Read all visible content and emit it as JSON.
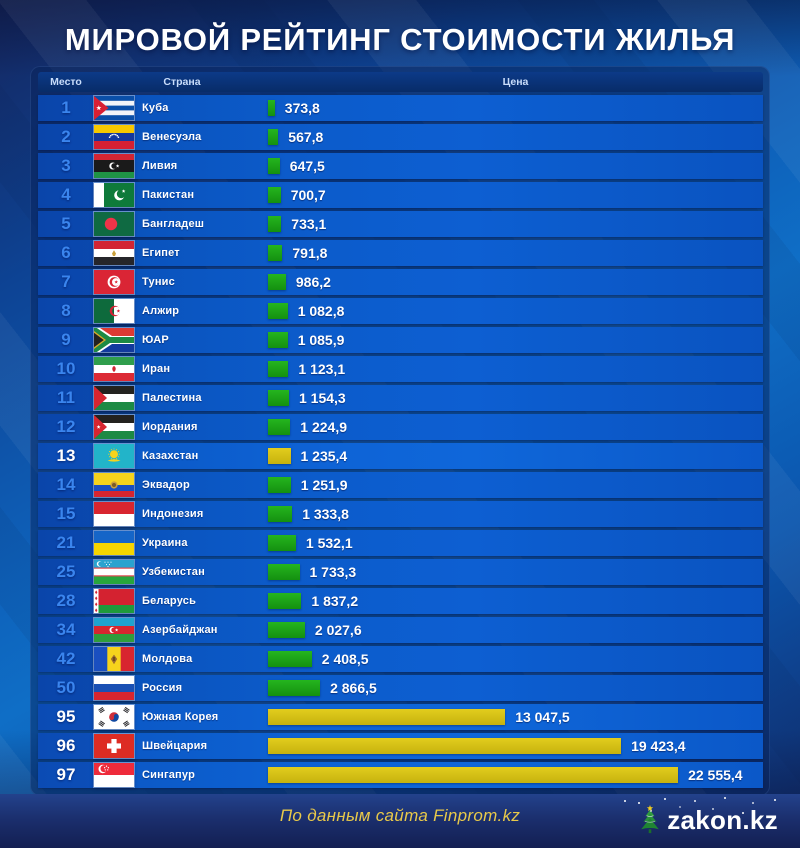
{
  "title": "МИРОВОЙ РЕЙТИНГ СТОИМОСТИ ЖИЛЬЯ",
  "table": {
    "col_rank": "Место",
    "col_country": "Страна",
    "col_price": "Цена"
  },
  "rows": [
    {
      "rank": "1",
      "country": "Куба",
      "flag": "cuba",
      "value": 373.8,
      "value_label": "373,8",
      "highlight": false
    },
    {
      "rank": "2",
      "country": "Венесуэла",
      "flag": "venezuela",
      "value": 567.8,
      "value_label": "567,8",
      "highlight": false
    },
    {
      "rank": "3",
      "country": "Ливия",
      "flag": "libya",
      "value": 647.5,
      "value_label": "647,5",
      "highlight": false
    },
    {
      "rank": "4",
      "country": "Пакистан",
      "flag": "pakistan",
      "value": 700.7,
      "value_label": "700,7",
      "highlight": false
    },
    {
      "rank": "5",
      "country": "Бангладеш",
      "flag": "bangladesh",
      "value": 733.1,
      "value_label": "733,1",
      "highlight": false
    },
    {
      "rank": "6",
      "country": "Египет",
      "flag": "egypt",
      "value": 791.8,
      "value_label": "791,8",
      "highlight": false
    },
    {
      "rank": "7",
      "country": "Тунис",
      "flag": "tunisia",
      "value": 986.2,
      "value_label": "986,2",
      "highlight": false
    },
    {
      "rank": "8",
      "country": "Алжир",
      "flag": "algeria",
      "value": 1082.8,
      "value_label": "1 082,8",
      "highlight": false
    },
    {
      "rank": "9",
      "country": "ЮАР",
      "flag": "south-africa",
      "value": 1085.9,
      "value_label": "1 085,9",
      "highlight": false
    },
    {
      "rank": "10",
      "country": "Иран",
      "flag": "iran",
      "value": 1123.1,
      "value_label": "1 123,1",
      "highlight": false
    },
    {
      "rank": "11",
      "country": "Палестина",
      "flag": "palestine",
      "value": 1154.3,
      "value_label": "1 154,3",
      "highlight": false
    },
    {
      "rank": "12",
      "country": "Иордания",
      "flag": "jordan",
      "value": 1224.9,
      "value_label": "1 224,9",
      "highlight": false
    },
    {
      "rank": "13",
      "country": "Казахстан",
      "flag": "kazakhstan",
      "value": 1235.4,
      "value_label": "1 235,4",
      "highlight": true
    },
    {
      "rank": "14",
      "country": "Эквадор",
      "flag": "ecuador",
      "value": 1251.9,
      "value_label": "1 251,9",
      "highlight": false
    },
    {
      "rank": "15",
      "country": "Индонезия",
      "flag": "indonesia",
      "value": 1333.8,
      "value_label": "1 333,8",
      "highlight": false
    },
    {
      "rank": "21",
      "country": "Украина",
      "flag": "ukraine",
      "value": 1532.1,
      "value_label": "1 532,1",
      "highlight": false
    },
    {
      "rank": "25",
      "country": "Узбекистан",
      "flag": "uzbekistan",
      "value": 1733.3,
      "value_label": "1 733,3",
      "highlight": false
    },
    {
      "rank": "28",
      "country": "Беларусь",
      "flag": "belarus",
      "value": 1837.2,
      "value_label": "1 837,2",
      "highlight": false
    },
    {
      "rank": "34",
      "country": "Азербайджан",
      "flag": "azerbaijan",
      "value": 2027.6,
      "value_label": "2 027,6",
      "highlight": false
    },
    {
      "rank": "42",
      "country": "Молдова",
      "flag": "moldova",
      "value": 2408.5,
      "value_label": "2 408,5",
      "highlight": false
    },
    {
      "rank": "50",
      "country": "Россия",
      "flag": "russia",
      "value": 2866.5,
      "value_label": "2 866,5",
      "highlight": false
    },
    {
      "rank": "95",
      "country": "Южная Корея",
      "flag": "south-korea",
      "value": 13047.5,
      "value_label": "13 047,5",
      "highlight": true
    },
    {
      "rank": "96",
      "country": "Швейцария",
      "flag": "switzerland",
      "value": 19423.4,
      "value_label": "19 423,4",
      "highlight": true
    },
    {
      "rank": "97",
      "country": "Сингапур",
      "flag": "singapore",
      "value": 22555.4,
      "value_label": "22 555,4",
      "highlight": true
    }
  ],
  "footer": {
    "source": "По данным сайта Finprom.kz",
    "logo": "zakon.kz"
  },
  "colors": {
    "bar_green": "#1ba513",
    "bar_yellow": "#d9c414",
    "row_blue": "#0c5bca",
    "rank_blue": "#3a85ee",
    "panel_navy": "#0a2f72",
    "footer_navy": "#1b2f6e",
    "source_yellow": "#e8c94a",
    "title_white": "#ffffff"
  },
  "chart_data": {
    "type": "bar",
    "orientation": "horizontal",
    "title": "МИРОВОЙ РЕЙТИНГ СТОИМОСТИ ЖИЛЬЯ",
    "source": "По данным сайта Finprom.kz",
    "categories": [
      "Куба",
      "Венесуэла",
      "Ливия",
      "Пакистан",
      "Бангладеш",
      "Египет",
      "Тунис",
      "Алжир",
      "ЮАР",
      "Иран",
      "Палестина",
      "Иордания",
      "Казахстан",
      "Эквадор",
      "Индонезия",
      "Украина",
      "Узбекистан",
      "Беларусь",
      "Азербайджан",
      "Молдова",
      "Россия",
      "Южная Корея",
      "Швейцария",
      "Сингапур"
    ],
    "ranks": [
      1,
      2,
      3,
      4,
      5,
      6,
      7,
      8,
      9,
      10,
      11,
      12,
      13,
      14,
      15,
      21,
      25,
      28,
      34,
      42,
      50,
      95,
      96,
      97
    ],
    "values": [
      373.8,
      567.8,
      647.5,
      700.7,
      733.1,
      791.8,
      986.2,
      1082.8,
      1085.9,
      1123.1,
      1154.3,
      1224.9,
      1235.4,
      1251.9,
      1333.8,
      1532.1,
      1733.3,
      1837.2,
      2027.6,
      2408.5,
      2866.5,
      13047.5,
      19423.4,
      22555.4
    ],
    "value_labels": [
      "373,8",
      "567,8",
      "647,5",
      "700,7",
      "733,1",
      "791,8",
      "986,2",
      "1 082,8",
      "1 085,9",
      "1 123,1",
      "1 154,3",
      "1 224,9",
      "1 235,4",
      "1 251,9",
      "1 333,8",
      "1 532,1",
      "1 733,3",
      "1 837,2",
      "2 027,6",
      "2 408,5",
      "2 866,5",
      "13 047,5",
      "19 423,4",
      "22 555,4"
    ],
    "highlighted_categories": [
      "Казахстан",
      "Южная Корея",
      "Швейцария",
      "Сингапур"
    ],
    "bar_colors": {
      "default": "#1ba513",
      "highlight": "#d9c414"
    },
    "xlim": [
      0,
      23000
    ],
    "grid": false,
    "legend": false
  }
}
